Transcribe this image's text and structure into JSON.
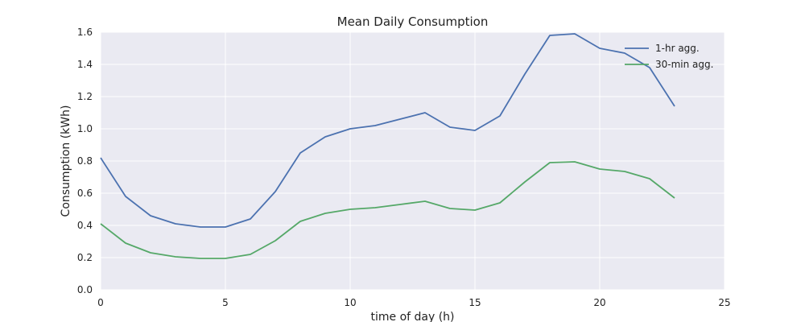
{
  "chart_data": {
    "type": "line",
    "title": "Mean Daily Consumption",
    "xlabel": "time of day (h)",
    "ylabel": "Consumption (kWh)",
    "xlim": [
      0,
      25
    ],
    "ylim": [
      0,
      1.6
    ],
    "xticks": [
      0,
      5,
      10,
      15,
      20,
      25
    ],
    "yticks": [
      0.0,
      0.2,
      0.4,
      0.6,
      0.8,
      1.0,
      1.2,
      1.4,
      1.6
    ],
    "grid": true,
    "legend_position": "top-right",
    "x": [
      0,
      1,
      2,
      3,
      4,
      5,
      6,
      7,
      8,
      9,
      10,
      11,
      12,
      13,
      14,
      15,
      16,
      17,
      18,
      19,
      20,
      21,
      22,
      23
    ],
    "series": [
      {
        "name": "1-hr agg.",
        "color": "#4c72b0",
        "values": [
          0.82,
          0.58,
          0.46,
          0.41,
          0.39,
          0.39,
          0.44,
          0.61,
          0.85,
          0.95,
          1.0,
          1.02,
          1.06,
          1.1,
          1.01,
          0.99,
          1.08,
          1.34,
          1.58,
          1.59,
          1.5,
          1.47,
          1.38,
          1.14
        ]
      },
      {
        "name": "30-min agg.",
        "color": "#55a868",
        "values": [
          0.41,
          0.29,
          0.23,
          0.205,
          0.195,
          0.195,
          0.22,
          0.305,
          0.425,
          0.475,
          0.5,
          0.51,
          0.53,
          0.55,
          0.505,
          0.495,
          0.54,
          0.67,
          0.79,
          0.795,
          0.75,
          0.735,
          0.69,
          0.57
        ]
      }
    ]
  },
  "colors": {
    "plot_background": "#eaeaf2",
    "grid": "#ffffff"
  }
}
